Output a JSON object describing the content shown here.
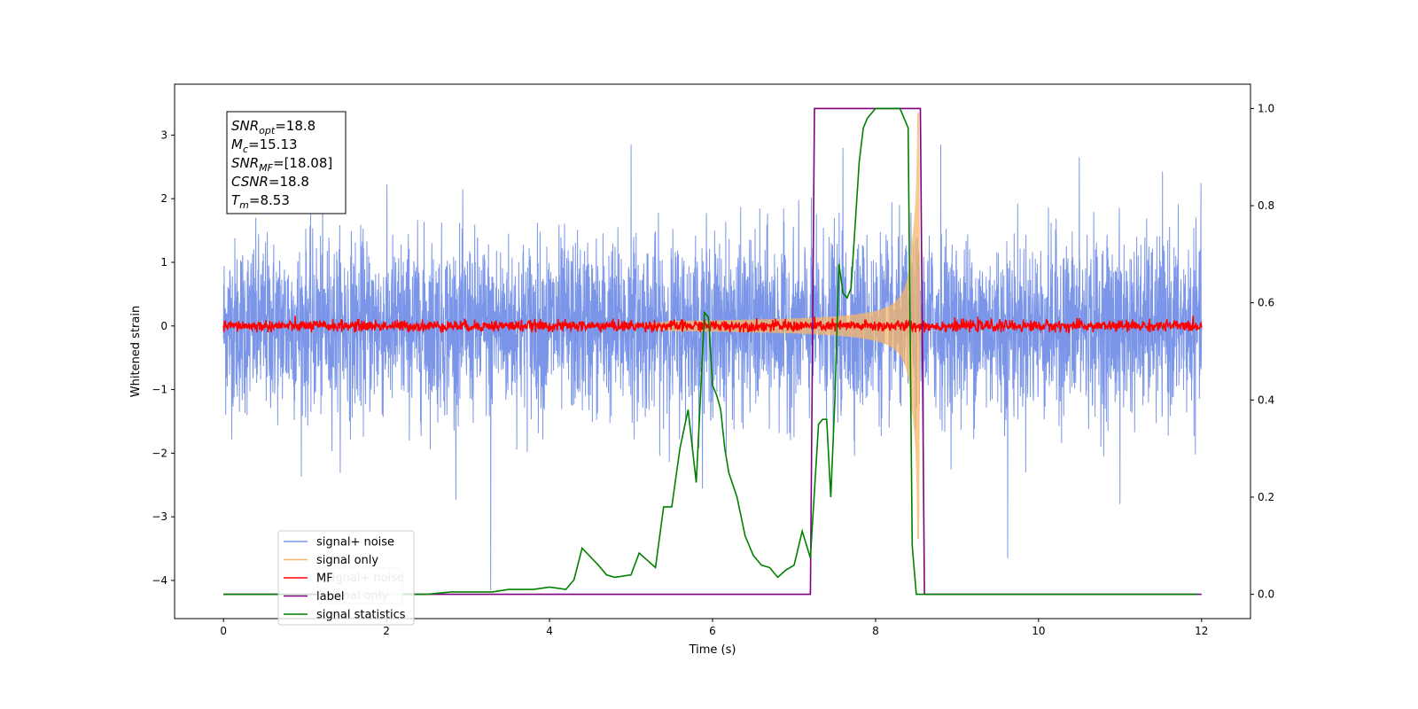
{
  "chart_data": {
    "type": "line",
    "xlabel": "Time (s)",
    "ylabel": "Whitened strain",
    "xlim": [
      -0.6,
      12.6
    ],
    "ylim": [
      -4.6,
      3.8
    ],
    "ylim_right": [
      -0.05,
      1.05
    ],
    "x_ticks": [
      0,
      2,
      4,
      6,
      8,
      10,
      12
    ],
    "y_ticks": [
      -4,
      -3,
      -2,
      -1,
      0,
      1,
      2,
      3
    ],
    "y_ticks_right": [
      0.0,
      0.2,
      0.4,
      0.6,
      0.8,
      1.0
    ],
    "grid": false,
    "legend_position": "lower-left",
    "annotation_lines": [
      {
        "label": "SNR",
        "sub": "opt",
        "value": "=18.8"
      },
      {
        "label": "M",
        "sub": "c",
        "value": "=15.13"
      },
      {
        "label": "SNR",
        "sub": "MF",
        "value": "=[18.08]"
      },
      {
        "label": "CSNR",
        "sub": "",
        "value": "=18.8"
      },
      {
        "label": "T",
        "sub": "m",
        "value": "=8.53"
      }
    ],
    "series": [
      {
        "name": "signal+ noise",
        "color": "#7b96e8",
        "axis": "left",
        "sigma": 0.68,
        "x_range": [
          0,
          12
        ],
        "spikes": [
          {
            "x": 3.28,
            "y": -4.15
          },
          {
            "x": 5.0,
            "y": 2.85
          },
          {
            "x": 7.6,
            "y": 2.8
          },
          {
            "x": 8.8,
            "y": 2.85
          },
          {
            "x": 9.62,
            "y": -3.65
          },
          {
            "x": 10.5,
            "y": 2.65
          },
          {
            "x": 11.0,
            "y": -2.8
          }
        ]
      },
      {
        "name": "signal only",
        "color": "#f5b66b",
        "axis": "left",
        "chirp": {
          "start": 5.5,
          "merger": 8.53,
          "peak_amplitude": 3.35
        }
      },
      {
        "name": "MF",
        "color": "#ff0000",
        "axis": "left",
        "sigma": 0.045,
        "x_range": [
          0,
          12
        ]
      },
      {
        "name": "label",
        "color": "#800080",
        "axis": "right",
        "x": [
          0,
          7.2,
          7.25,
          8.55,
          8.6,
          12
        ],
        "y": [
          0,
          0,
          1,
          1,
          0,
          0
        ]
      },
      {
        "name": "signal statistics",
        "color": "#008000",
        "axis": "right",
        "x": [
          0,
          0.5,
          1.0,
          1.5,
          2.0,
          2.5,
          2.8,
          3.0,
          3.3,
          3.5,
          3.8,
          4.0,
          4.2,
          4.3,
          4.4,
          4.6,
          4.7,
          4.8,
          5.0,
          5.1,
          5.2,
          5.3,
          5.4,
          5.5,
          5.6,
          5.7,
          5.8,
          5.85,
          5.9,
          5.95,
          6.0,
          6.05,
          6.1,
          6.15,
          6.2,
          6.3,
          6.4,
          6.5,
          6.6,
          6.7,
          6.8,
          6.9,
          7.0,
          7.1,
          7.2,
          7.3,
          7.35,
          7.4,
          7.45,
          7.5,
          7.55,
          7.6,
          7.65,
          7.7,
          7.8,
          7.85,
          7.9,
          8.0,
          8.1,
          8.2,
          8.3,
          8.4,
          8.45,
          8.5,
          8.55,
          8.6,
          8.65,
          9.0,
          10.0,
          11.0,
          11.95
        ],
        "y": [
          0.0,
          0.0,
          0.0,
          0.0,
          0.0,
          0.0,
          0.005,
          0.005,
          0.005,
          0.01,
          0.01,
          0.015,
          0.01,
          0.03,
          0.095,
          0.06,
          0.04,
          0.035,
          0.04,
          0.085,
          0.07,
          0.055,
          0.18,
          0.18,
          0.3,
          0.38,
          0.23,
          0.4,
          0.58,
          0.57,
          0.43,
          0.41,
          0.38,
          0.3,
          0.25,
          0.2,
          0.12,
          0.08,
          0.06,
          0.055,
          0.035,
          0.05,
          0.06,
          0.13,
          0.075,
          0.35,
          0.36,
          0.36,
          0.2,
          0.4,
          0.68,
          0.62,
          0.61,
          0.63,
          0.89,
          0.96,
          0.98,
          1.0,
          1.0,
          1.0,
          1.0,
          0.96,
          0.1,
          0.0,
          0.0,
          0.0,
          0.0,
          0.0,
          0.0,
          0.0,
          0.0
        ]
      }
    ],
    "legend_entries": [
      {
        "name": "signal+ noise",
        "color": "#7b96e8"
      },
      {
        "name": "signal only",
        "color": "#f5b66b"
      },
      {
        "name": "MF",
        "color": "#ff0000"
      },
      {
        "name": "label",
        "color": "#800080"
      },
      {
        "name": "signal statistics",
        "color": "#008000"
      }
    ],
    "ghost_legend_entries": [
      "signal+ noise",
      "signal only"
    ]
  }
}
